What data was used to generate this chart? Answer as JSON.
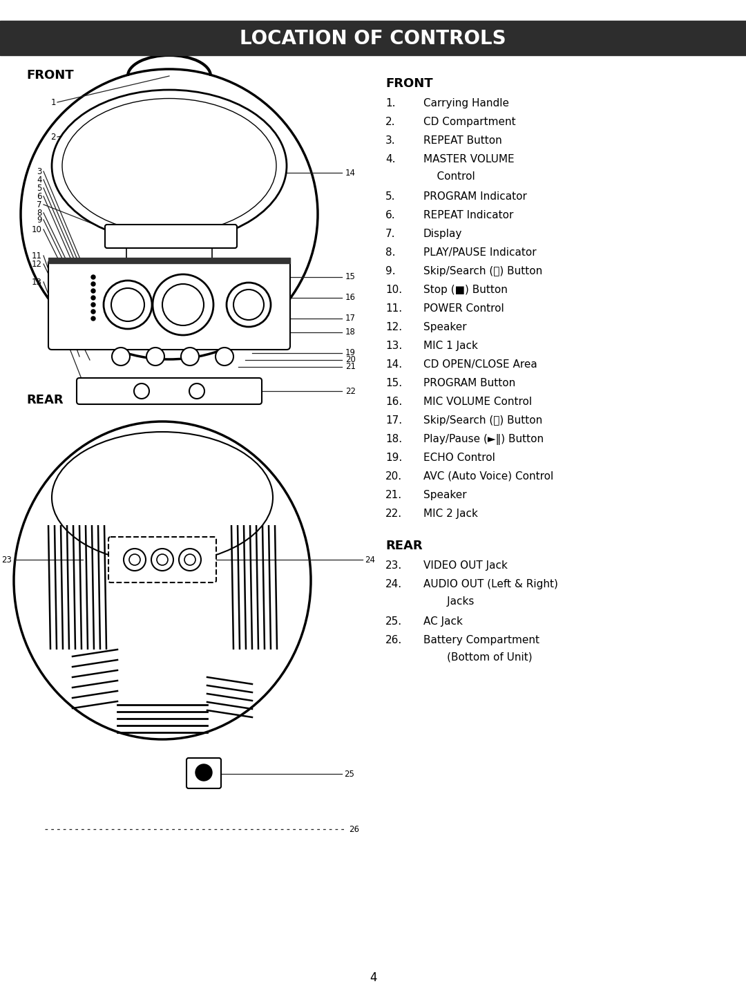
{
  "title": "LOCATION OF CONTROLS",
  "title_bg": "#2d2d2d",
  "title_color": "#ffffff",
  "page_bg": "#ffffff",
  "front_label": "FRONT",
  "rear_label": "REAR",
  "page_number": "4",
  "front_items": [
    [
      "1.",
      "Carrying Handle"
    ],
    [
      "2.",
      "CD Compartment"
    ],
    [
      "3.",
      "REPEAT Button"
    ],
    [
      "4.",
      "MASTER VOLUME",
      "    Control"
    ],
    [
      "5.",
      "PROGRAM Indicator"
    ],
    [
      "6.",
      "REPEAT Indicator"
    ],
    [
      "7.",
      "Display"
    ],
    [
      "8.",
      "PLAY/PAUSE Indicator"
    ],
    [
      "9.",
      "Skip/Search (⏮) Button"
    ],
    [
      "10.",
      "Stop (■) Button"
    ],
    [
      "11.",
      "POWER Control"
    ],
    [
      "12.",
      "Speaker"
    ],
    [
      "13.",
      "MIC 1 Jack"
    ],
    [
      "14.",
      "CD OPEN/CLOSE Area"
    ],
    [
      "15.",
      "PROGRAM Button"
    ],
    [
      "16.",
      "MIC VOLUME Control"
    ],
    [
      "17.",
      "Skip/Search (⏭) Button"
    ],
    [
      "18.",
      "Play/Pause (►‖) Button"
    ],
    [
      "19.",
      "ECHO Control"
    ],
    [
      "20.",
      "AVC (Auto Voice) Control"
    ],
    [
      "21.",
      "Speaker"
    ],
    [
      "22.",
      "MIC 2 Jack"
    ]
  ],
  "rear_items": [
    [
      "23.",
      "VIDEO OUT Jack"
    ],
    [
      "24.",
      "AUDIO OUT (Left & Right)",
      "       Jacks"
    ],
    [
      "25.",
      "AC Jack"
    ],
    [
      "26.",
      "Battery Compartment",
      "       (Bottom of Unit)"
    ]
  ]
}
